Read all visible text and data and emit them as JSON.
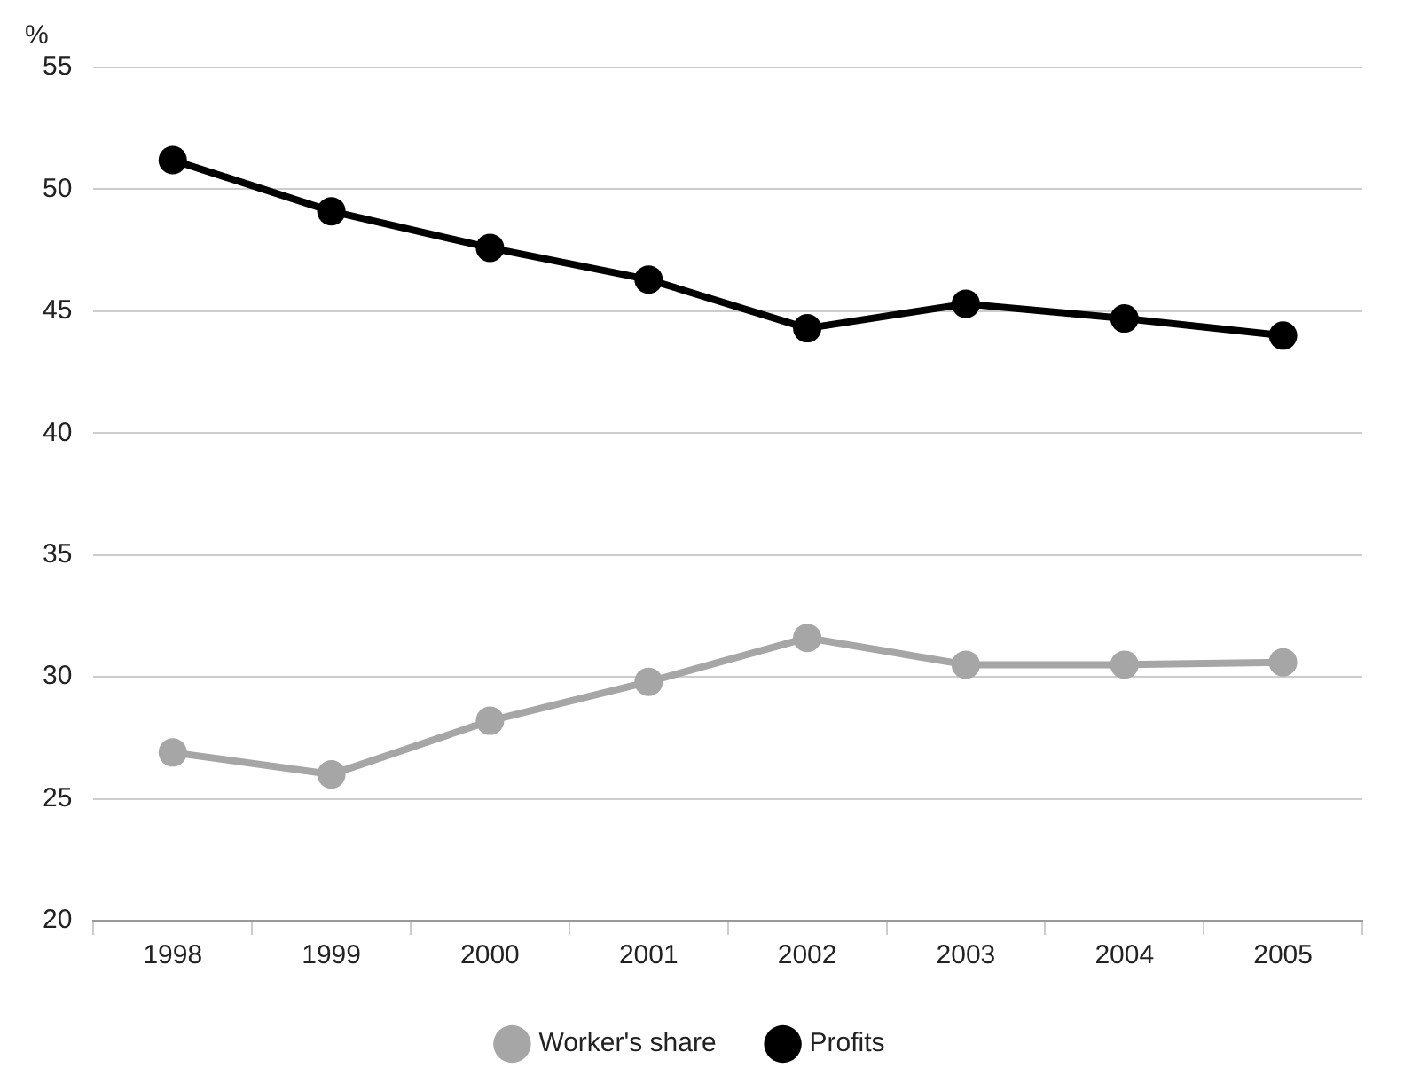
{
  "chart_data": {
    "type": "line",
    "ylabel": "%",
    "categories": [
      "1998",
      "1999",
      "2000",
      "2001",
      "2002",
      "2003",
      "2004",
      "2005"
    ],
    "series": [
      {
        "name": "Worker's share",
        "color": "#a6a6a6",
        "values": [
          26.9,
          26.0,
          28.2,
          29.8,
          31.6,
          30.5,
          30.5,
          30.6
        ]
      },
      {
        "name": "Profits",
        "color": "#000000",
        "values": [
          51.2,
          49.1,
          47.6,
          46.3,
          44.3,
          45.3,
          44.7,
          44.0
        ]
      }
    ],
    "ylim": [
      20,
      55
    ],
    "yticks": [
      20,
      25,
      30,
      35,
      40,
      45,
      50,
      55
    ],
    "grid": "y",
    "legend": "bottom",
    "marker": "circle",
    "line_style": "solid"
  }
}
